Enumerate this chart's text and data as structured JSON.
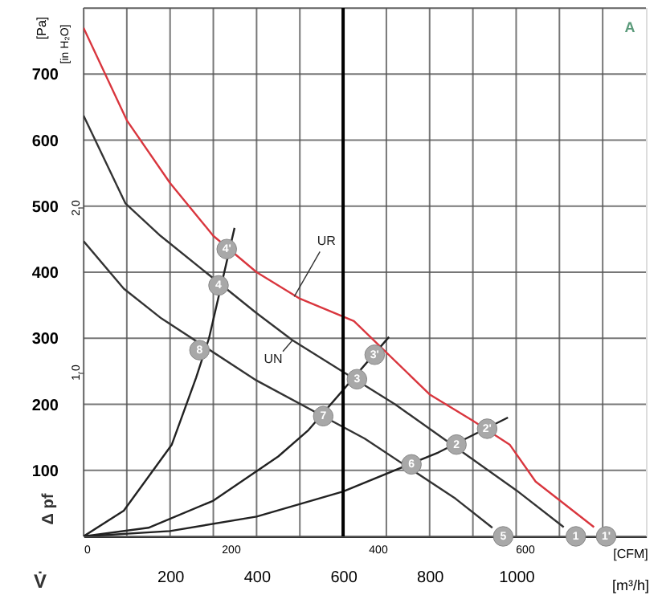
{
  "chart_data": {
    "type": "line",
    "xlabel": "[m³/h]",
    "ylabel": "[Pa]",
    "x2label": "[CFM]",
    "y2label": "[in H₂O]",
    "xlim": [
      0,
      1300
    ],
    "xticks": [
      {
        "value": 0,
        "label": null
      },
      {
        "value": 100,
        "label": null
      },
      200,
      {
        "value": 300,
        "label": null
      },
      400,
      {
        "value": 500,
        "label": null
      },
      600,
      {
        "value": 700,
        "label": null
      },
      800,
      {
        "value": 900,
        "label": null
      },
      1000,
      {
        "value": 1100,
        "label": null
      },
      {
        "value": 1200,
        "label": null
      }
    ],
    "x2lim": [
      0,
      765
    ],
    "x2ticks": [
      0,
      200,
      400,
      600
    ],
    "ylim": [
      0,
      800
    ],
    "yticks": [
      {
        "value": 0,
        "label": null
      },
      100,
      200,
      300,
      400,
      500,
      600,
      700,
      {
        "value": 800,
        "label": null
      }
    ],
    "y2lim": [
      0,
      3.21
    ],
    "y2ticks": [
      {
        "value": 1,
        "label": "1.0"
      },
      {
        "value": 2,
        "label": "2.0"
      }
    ],
    "grid": true,
    "ref_lines": [
      {
        "axis": "x",
        "value": 600,
        "color": "#000000"
      }
    ],
    "annotations": [
      "Δ pf",
      "V̇",
      "A",
      {
        "text": "UR",
        "x": 487,
        "y": 363
      },
      {
        "text": "UN",
        "x": 483,
        "y": 297
      },
      {
        "text": "4'",
        "x": 331,
        "y": 435
      },
      {
        "text": "3'",
        "x": 673,
        "y": 275
      },
      {
        "text": "2'",
        "x": 933,
        "y": 163
      },
      {
        "text": "1'",
        "x": 1208,
        "y": 0
      },
      {
        "text": "4",
        "x": 312,
        "y": 380
      },
      {
        "text": "3",
        "x": 632,
        "y": 238
      },
      {
        "text": "2",
        "x": 862,
        "y": 139
      },
      {
        "text": "1",
        "x": 1138,
        "y": 0
      },
      {
        "text": "8",
        "x": 268,
        "y": 282
      },
      {
        "text": "7",
        "x": 554,
        "y": 182
      },
      {
        "text": "6",
        "x": 758,
        "y": 109
      },
      {
        "text": "5",
        "x": 970,
        "y": 0
      }
    ],
    "series": [
      {
        "color": "#d9363e",
        "x": [
          0,
          100,
          200,
          300,
          400,
          500,
          625,
          800,
          900,
          985,
          1045,
          1180
        ],
        "values": [
          770,
          630,
          535,
          455,
          400,
          360,
          326,
          215,
          175,
          139,
          83,
          14
        ]
      },
      {
        "color": "#333333",
        "x": [
          0,
          97,
          178,
          400,
          483,
          720,
          1000,
          1110
        ],
        "values": [
          637,
          504,
          455,
          338,
          297,
          200,
          70,
          14
        ]
      },
      {
        "color": "#333333",
        "x": [
          0,
          93,
          180,
          400,
          650,
          860,
          945
        ],
        "values": [
          447,
          375,
          330,
          236,
          148,
          57,
          13
        ]
      },
      {
        "color": "#222222",
        "x": [
          0,
          93,
          204,
          260,
          290,
          349
        ],
        "values": [
          0,
          39,
          139,
          240,
          300,
          467
        ]
      },
      {
        "color": "#222222",
        "x": [
          0,
          150,
          300,
          450,
          520,
          706
        ],
        "values": [
          0,
          13,
          54,
          121,
          161,
          302
        ]
      },
      {
        "color": "#222222",
        "x": [
          0,
          200,
          400,
          600,
          820,
          981
        ],
        "values": [
          0,
          8,
          30,
          68,
          127,
          180
        ]
      }
    ]
  }
}
